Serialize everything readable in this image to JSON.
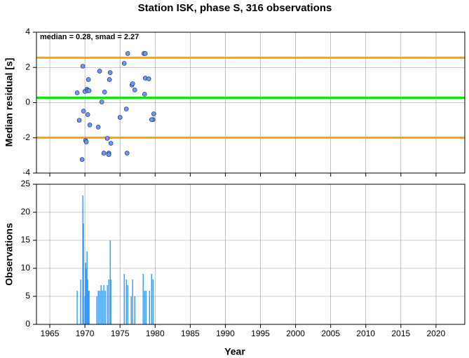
{
  "chart_data": [
    {
      "type": "scatter",
      "title": "Station ISK, phase S, 316 observations",
      "ylabel": "Median residual [s]",
      "annotation": "median = 0.28, smad = 2.27",
      "x": [
        1968.9,
        1969.7,
        1969.2,
        1969.8,
        1970.0,
        1970.3,
        1970.5,
        1970.4,
        1970.6,
        1970.4,
        1970.1,
        1970.2,
        1969.6,
        1970.7,
        1971.9,
        1972.1,
        1972.4,
        1972.8,
        1972.7,
        1973.2,
        1973.4,
        1973.4,
        1973.7,
        1973.5,
        1973.6,
        1975.0,
        1975.6,
        1975.9,
        1976.1,
        1976.0,
        1976.7,
        1976.8,
        1977.1,
        1978.4,
        1978.6,
        1978.5,
        1978.6,
        1979.1,
        1979.7,
        1979.5,
        1979.8
      ],
      "values": [
        0.56,
        2.07,
        -1.0,
        -0.48,
        0.64,
        0.76,
        1.31,
        0.68,
        0.68,
        -0.68,
        -2.15,
        -2.23,
        -3.23,
        -1.27,
        -1.39,
        1.79,
        0.04,
        0.6,
        -2.87,
        -2.03,
        -2.87,
        -2.95,
        -2.31,
        1.31,
        1.71,
        -0.84,
        2.23,
        -0.36,
        2.79,
        -2.87,
        1.0,
        1.08,
        0.72,
        2.79,
        2.79,
        0.48,
        1.39,
        1.35,
        -0.96,
        -0.96,
        -0.64
      ],
      "color": "#6699ff",
      "hlines": [
        {
          "value": 0.28,
          "color": "#00ee00"
        },
        {
          "value": 2.55,
          "color": "#ffa500"
        },
        {
          "value": -1.99,
          "color": "#ffa500"
        }
      ],
      "xlim": [
        1963.1,
        2024.1
      ],
      "xticks": [
        1965,
        1970,
        1975,
        1980,
        1985,
        1990,
        1995,
        2000,
        2005,
        2010,
        2015,
        2020
      ],
      "show_xtick_labels": false,
      "ylim": [
        -4,
        4
      ],
      "yticks": [
        -4,
        -2,
        0,
        2,
        4
      ],
      "grid": true
    },
    {
      "type": "bar",
      "xlabel": "Year",
      "ylabel": "Observations",
      "x": [
        1968.9,
        1969.4,
        1969.7,
        1969.8,
        1970.0,
        1970.1,
        1970.3,
        1970.2,
        1970.4,
        1970.5,
        1970.6,
        1971.7,
        1971.9,
        1972.1,
        1972.3,
        1972.5,
        1972.7,
        1972.9,
        1973.2,
        1973.4,
        1973.6,
        1973.7,
        1975.6,
        1975.9,
        1976.1,
        1976.6,
        1976.8,
        1977.1,
        1978.3,
        1978.5,
        1978.7,
        1979.2,
        1979.5,
        1979.7
      ],
      "values": [
        6,
        8,
        23,
        18,
        5,
        11,
        13,
        10,
        8,
        6,
        6,
        5,
        6,
        6,
        7,
        6,
        7,
        6,
        7,
        8,
        15,
        8,
        9,
        8,
        7,
        5,
        8,
        5,
        9,
        6,
        6,
        6,
        9,
        8
      ],
      "color": "#3399ff",
      "xlim": [
        1963.1,
        2024.1
      ],
      "xticks": [
        1965,
        1970,
        1975,
        1980,
        1985,
        1990,
        1995,
        2000,
        2005,
        2010,
        2015,
        2020
      ],
      "show_xtick_labels": true,
      "ylim": [
        0,
        25
      ],
      "yticks": [
        0,
        5,
        10,
        15,
        20,
        25
      ],
      "grid": true
    }
  ]
}
